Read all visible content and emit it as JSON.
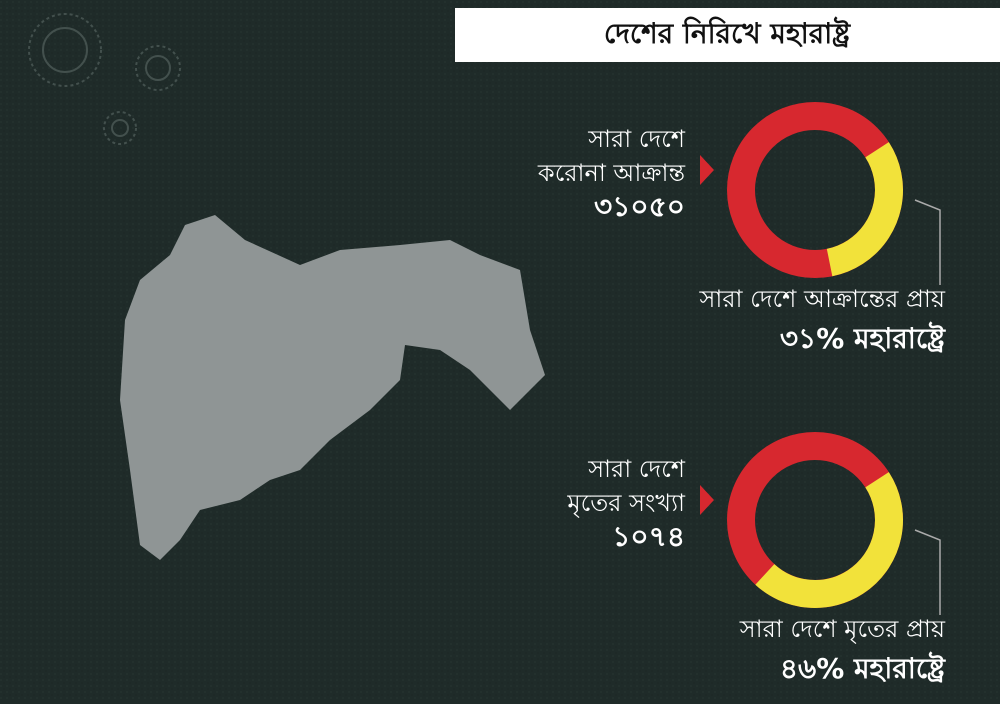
{
  "header": {
    "title": "দেশের নিরিখে মহারাষ্ট্র"
  },
  "panels": [
    {
      "label_lines": [
        "সারা দেশে",
        "করোনা আক্রান্ত"
      ],
      "count": "৩১০৫০",
      "share": 31,
      "caption": "সারা দেশে আক্রান্তের প্রায়",
      "highlight": "৩১% মহারাষ্ট্রে"
    },
    {
      "label_lines": [
        "সারা দেশে",
        "মৃতের সংখ্যা"
      ],
      "count": "১০৭৪",
      "share": 46,
      "caption": "সারা দেশে মৃতের প্রায়",
      "highlight": "৪৬% মহারাষ্ট্রে"
    }
  ]
}
